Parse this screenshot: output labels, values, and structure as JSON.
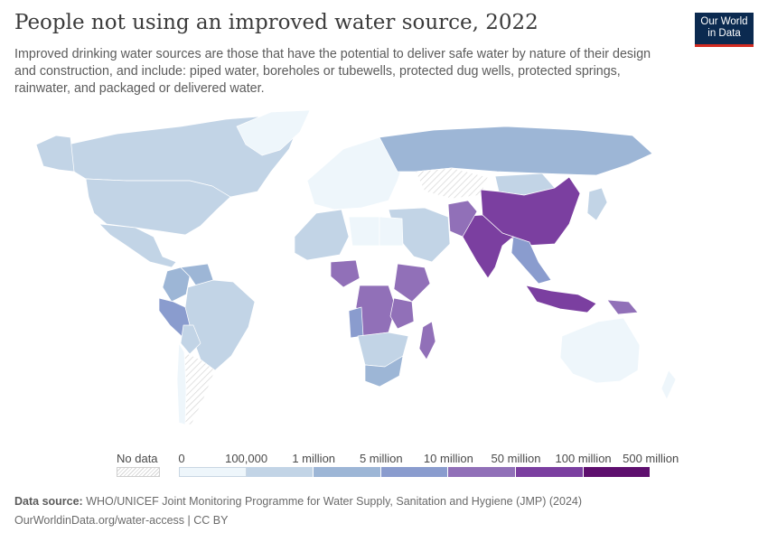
{
  "header": {
    "title": "People not using an improved water source, 2022",
    "subtitle": "Improved drinking water sources are those that have the potential to deliver safe water by nature of their design and construction, and include: piped water, boreholes or tubewells, protected dug wells, protected springs, rainwater, and packaged or delivered water.",
    "logo_line1": "Our World",
    "logo_line2": "in Data"
  },
  "legend": {
    "nodata_label": "No data",
    "thresholds": [
      "0",
      "100,000",
      "1 million",
      "5 million",
      "10 million",
      "50 million",
      "100 million",
      "500 million"
    ],
    "bins": [
      {
        "from": "0",
        "to": "100,000",
        "color": "#eef6fb"
      },
      {
        "from": "100,000",
        "to": "1 million",
        "color": "#c2d4e6"
      },
      {
        "from": "1 million",
        "to": "5 million",
        "color": "#9db6d6"
      },
      {
        "from": "5 million",
        "to": "10 million",
        "color": "#8a9cce"
      },
      {
        "from": "10 million",
        "to": "50 million",
        "color": "#9170b8"
      },
      {
        "from": "50 million",
        "to": "100 million",
        "color": "#7b3fa0"
      },
      {
        "from": "100 million",
        "to": "500 million",
        "color": "#5e0f6e"
      }
    ]
  },
  "map_regions": [
    {
      "name": "Canada",
      "bin": 1
    },
    {
      "name": "Alaska",
      "bin": 1
    },
    {
      "name": "United States",
      "bin": 1
    },
    {
      "name": "Greenland",
      "bin": 0
    },
    {
      "name": "Mexico",
      "bin": 1
    },
    {
      "name": "Colombia",
      "bin": 2
    },
    {
      "name": "Venezuela",
      "bin": 2
    },
    {
      "name": "Peru",
      "bin": 3
    },
    {
      "name": "Brazil",
      "bin": 1
    },
    {
      "name": "Bolivia",
      "bin": 1
    },
    {
      "name": "Argentina",
      "bin": -1
    },
    {
      "name": "Chile",
      "bin": 0
    },
    {
      "name": "Europe",
      "bin": 0
    },
    {
      "name": "Russia",
      "bin": 2
    },
    {
      "name": "Kazakhstan",
      "bin": -1
    },
    {
      "name": "Mongolia",
      "bin": 1
    },
    {
      "name": "China",
      "bin": 5
    },
    {
      "name": "India",
      "bin": 5
    },
    {
      "name": "Pakistan",
      "bin": 4
    },
    {
      "name": "Middle East",
      "bin": 1
    },
    {
      "name": "North Africa",
      "bin": 1
    },
    {
      "name": "Libya",
      "bin": 0
    },
    {
      "name": "Egypt",
      "bin": 0
    },
    {
      "name": "Nigeria",
      "bin": 4
    },
    {
      "name": "Ethiopia",
      "bin": 4
    },
    {
      "name": "DR Congo",
      "bin": 4
    },
    {
      "name": "Tanzania",
      "bin": 4
    },
    {
      "name": "Angola",
      "bin": 3
    },
    {
      "name": "Southern Africa",
      "bin": 1
    },
    {
      "name": "South Africa",
      "bin": 2
    },
    {
      "name": "Madagascar",
      "bin": 4
    },
    {
      "name": "Indonesia",
      "bin": 5
    },
    {
      "name": "Papua New Guinea",
      "bin": 4
    },
    {
      "name": "Southeast Asia",
      "bin": 3
    },
    {
      "name": "Japan",
      "bin": 1
    },
    {
      "name": "Australia",
      "bin": 0
    },
    {
      "name": "New Zealand",
      "bin": 0
    }
  ],
  "footer": {
    "source_label": "Data source:",
    "source_text": "WHO/UNICEF Joint Monitoring Programme for Water Supply, Sanitation and Hygiene (JMP) (2024)",
    "url_license": "OurWorldinData.org/water-access | CC BY"
  }
}
